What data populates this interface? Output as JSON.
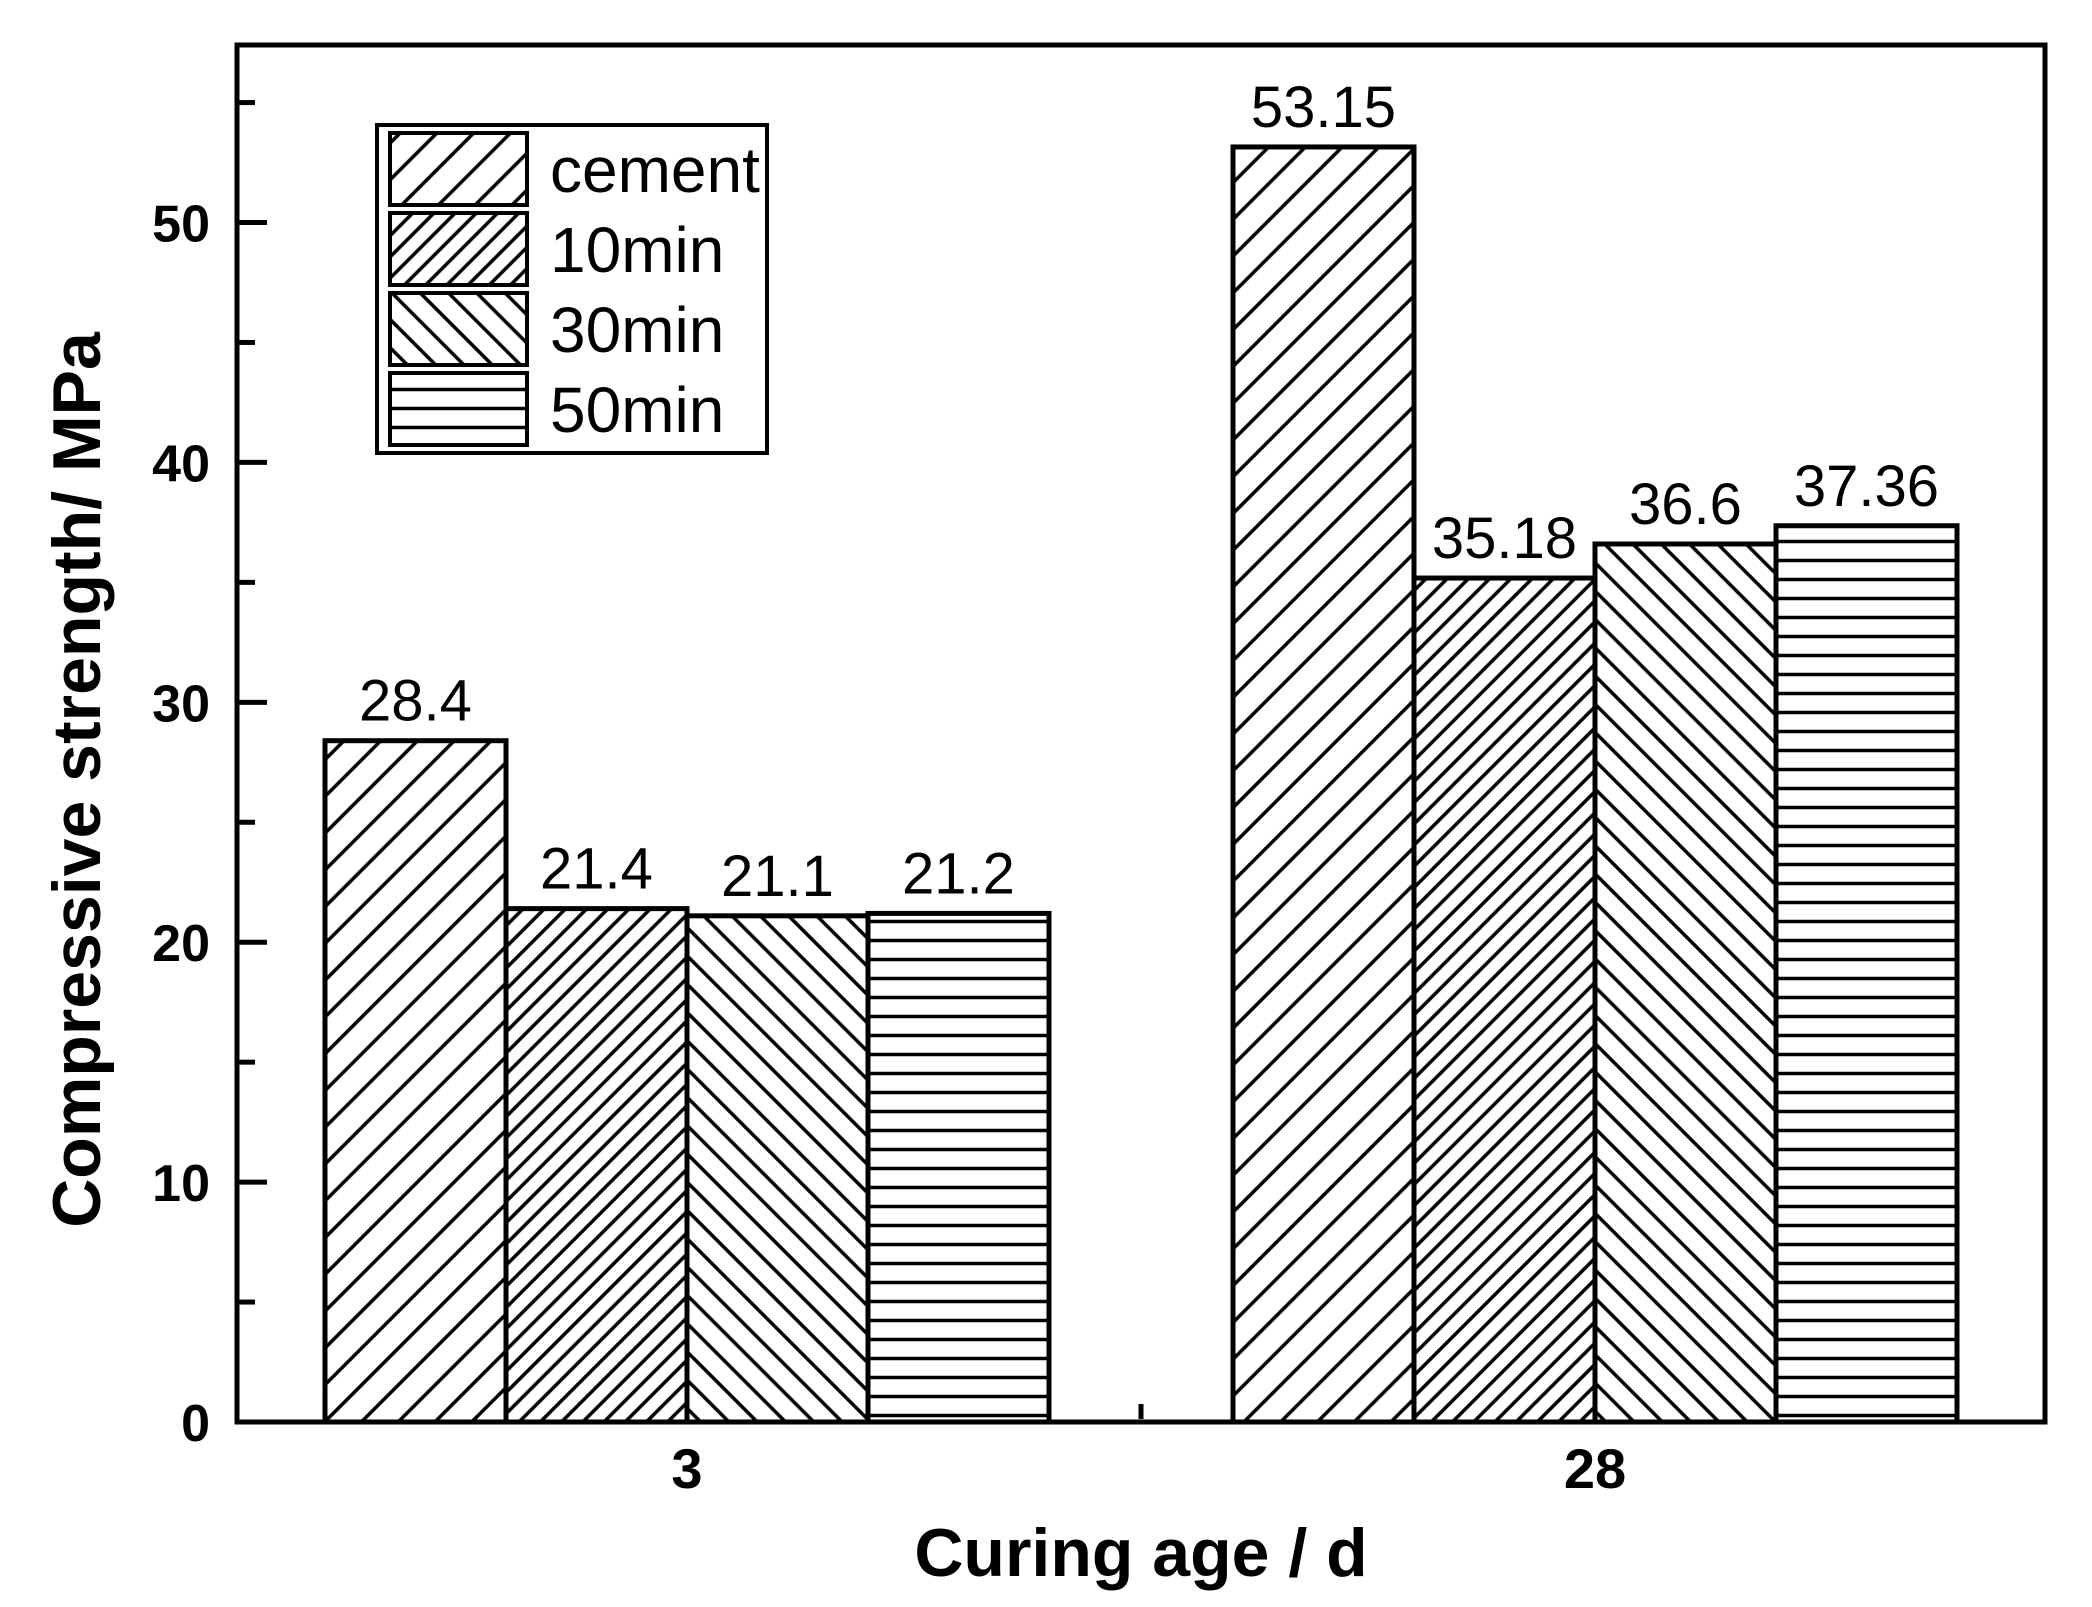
{
  "chart_data": {
    "type": "bar",
    "title": "",
    "xlabel": "Curing age / d",
    "ylabel": "Compressive strength/ MPa",
    "categories": [
      "3",
      "28"
    ],
    "series": [
      {
        "name": "cement",
        "hatch": "diagonal-forward-wide",
        "values": [
          28.4,
          53.15
        ],
        "labels": [
          "28.4",
          "53.15"
        ]
      },
      {
        "name": "10min",
        "hatch": "diagonal-forward-dense",
        "values": [
          21.4,
          35.18
        ],
        "labels": [
          "21.4",
          "35.18"
        ]
      },
      {
        "name": "30min",
        "hatch": "diagonal-backward",
        "values": [
          21.1,
          36.6
        ],
        "labels": [
          "21.1",
          "36.6"
        ]
      },
      {
        "name": "50min",
        "hatch": "horizontal-lines",
        "values": [
          21.2,
          37.36
        ],
        "labels": [
          "21.2",
          "37.36"
        ]
      }
    ],
    "y_ticks": [
      0,
      10,
      20,
      30,
      40,
      50
    ],
    "y_minor_ticks": [
      5,
      15,
      25,
      35,
      45,
      55
    ],
    "ylim": [
      0,
      57.4
    ],
    "grid": false,
    "legend_position": "top-left-inside",
    "legend_entries": [
      "cement",
      "10min",
      "30min",
      "50min"
    ],
    "colors": {
      "line": "#000000",
      "bar_fill": "#ffffff",
      "background": "#ffffff"
    }
  }
}
